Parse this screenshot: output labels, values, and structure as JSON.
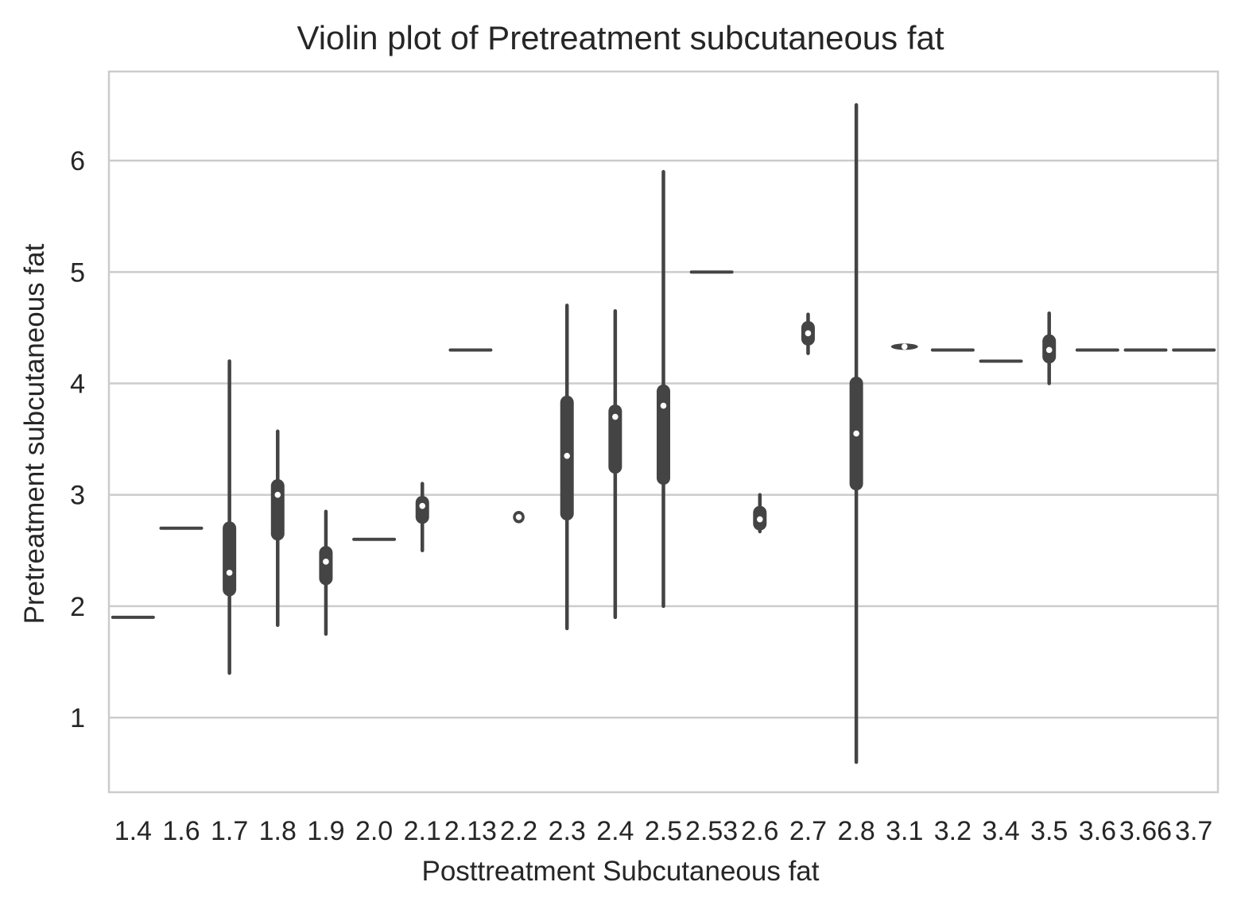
{
  "chart_data": {
    "type": "violin",
    "title": "Violin plot of Pretreatment subcutaneous fat",
    "xlabel": "Posttreatment Subcutaneous fat",
    "ylabel": "Pretreatment subcutaneous fat",
    "ylim": [
      0.33,
      6.8
    ],
    "yticks": [
      1,
      2,
      3,
      4,
      5,
      6
    ],
    "grid": "horizontal",
    "colors": {
      "violin": "#444444",
      "median": "#ffffff",
      "grid": "#cccccc",
      "frame": "#cccccc"
    },
    "categories": [
      "1.4",
      "1.6",
      "1.7",
      "1.8",
      "1.9",
      "2.0",
      "2.1",
      "2.13",
      "2.2",
      "2.3",
      "2.4",
      "2.5",
      "2.53",
      "2.6",
      "2.7",
      "2.8",
      "3.1",
      "3.2",
      "3.4",
      "3.5",
      "3.6",
      "3.66",
      "3.7"
    ],
    "groups": [
      {
        "category": "1.4",
        "min": 1.9,
        "q1": 1.9,
        "median": 1.9,
        "q3": 1.9,
        "max": 1.9
      },
      {
        "category": "1.6",
        "min": 2.7,
        "q1": 2.7,
        "median": 2.7,
        "q3": 2.7,
        "max": 2.7
      },
      {
        "category": "1.7",
        "min": 1.4,
        "q1": 2.15,
        "median": 2.3,
        "q3": 2.7,
        "max": 4.2
      },
      {
        "category": "1.8",
        "min": 1.83,
        "q1": 2.65,
        "median": 3.0,
        "q3": 3.08,
        "max": 3.57
      },
      {
        "category": "1.9",
        "min": 1.75,
        "q1": 2.25,
        "median": 2.4,
        "q3": 2.48,
        "max": 2.85
      },
      {
        "category": "2.0",
        "min": 2.6,
        "q1": 2.6,
        "median": 2.6,
        "q3": 2.6,
        "max": 2.6
      },
      {
        "category": "2.1",
        "min": 2.5,
        "q1": 2.8,
        "median": 2.9,
        "q3": 2.93,
        "max": 3.1
      },
      {
        "category": "2.13",
        "min": 4.3,
        "q1": 4.3,
        "median": 4.3,
        "q3": 4.3,
        "max": 4.3
      },
      {
        "category": "2.2",
        "min": 2.77,
        "q1": 2.79,
        "median": 2.8,
        "q3": 2.82,
        "max": 2.88
      },
      {
        "category": "2.3",
        "min": 1.8,
        "q1": 2.83,
        "median": 3.35,
        "q3": 3.83,
        "max": 4.7
      },
      {
        "category": "2.4",
        "min": 1.9,
        "q1": 3.25,
        "median": 3.7,
        "q3": 3.75,
        "max": 4.65
      },
      {
        "category": "2.5",
        "min": 2.0,
        "q1": 3.15,
        "median": 3.8,
        "q3": 3.93,
        "max": 5.9
      },
      {
        "category": "2.53",
        "min": 5.0,
        "q1": 5.0,
        "median": 5.0,
        "q3": 5.0,
        "max": 5.0
      },
      {
        "category": "2.6",
        "min": 2.67,
        "q1": 2.74,
        "median": 2.78,
        "q3": 2.84,
        "max": 3.0
      },
      {
        "category": "2.7",
        "min": 4.27,
        "q1": 4.4,
        "median": 4.45,
        "q3": 4.5,
        "max": 4.62
      },
      {
        "category": "2.8",
        "min": 0.6,
        "q1": 3.1,
        "median": 3.55,
        "q3": 4.0,
        "max": 6.5
      },
      {
        "category": "3.1",
        "min": 4.3,
        "q1": 4.31,
        "median": 4.33,
        "q3": 4.34,
        "max": 4.35
      },
      {
        "category": "3.2",
        "min": 4.3,
        "q1": 4.3,
        "median": 4.3,
        "q3": 4.3,
        "max": 4.3
      },
      {
        "category": "3.4",
        "min": 4.2,
        "q1": 4.2,
        "median": 4.2,
        "q3": 4.2,
        "max": 4.2
      },
      {
        "category": "3.5",
        "min": 4.0,
        "q1": 4.24,
        "median": 4.3,
        "q3": 4.38,
        "max": 4.63
      },
      {
        "category": "3.6",
        "min": 4.3,
        "q1": 4.3,
        "median": 4.3,
        "q3": 4.3,
        "max": 4.3
      },
      {
        "category": "3.66",
        "min": 4.3,
        "q1": 4.3,
        "median": 4.3,
        "q3": 4.3,
        "max": 4.3
      },
      {
        "category": "3.7",
        "min": 4.3,
        "q1": 4.3,
        "median": 4.3,
        "q3": 4.3,
        "max": 4.3
      }
    ]
  }
}
